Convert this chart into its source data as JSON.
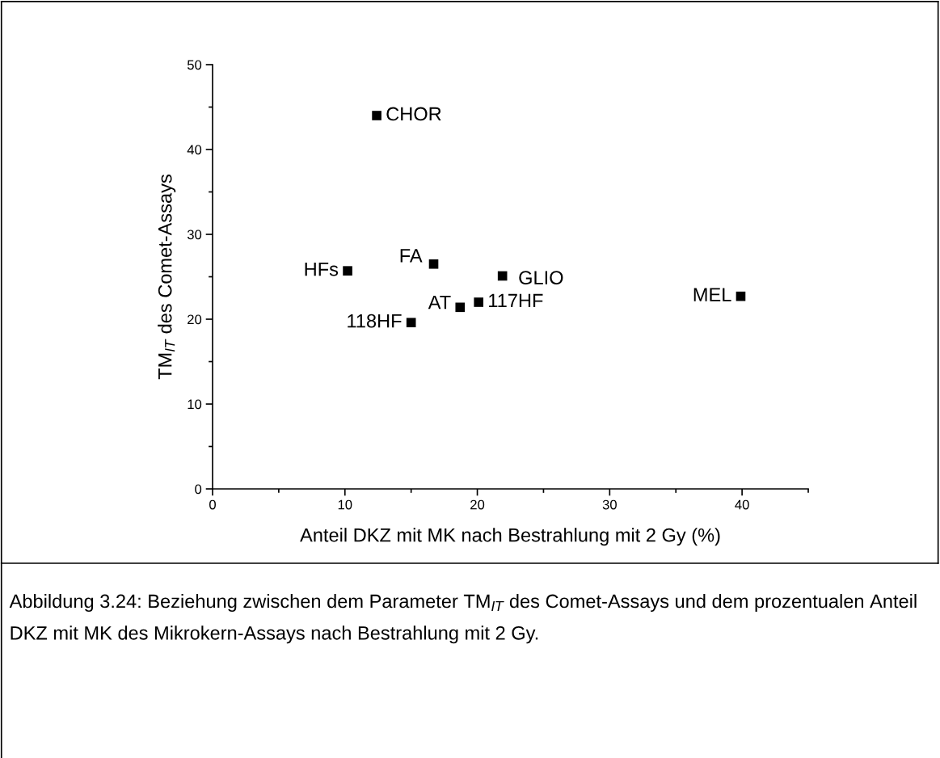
{
  "chart_data": {
    "type": "scatter",
    "xlabel": "Anteil DKZ mit MK nach Bestrahlung mit 2 Gy (%)",
    "ylabel": "TM$_{IT}$ des Comet-Assays",
    "x": [
      12.4,
      10.2,
      16.7,
      21.9,
      18.7,
      20.1,
      15.0,
      39.9
    ],
    "values": [
      44.0,
      25.7,
      26.5,
      25.1,
      21.4,
      22.0,
      19.6,
      22.7
    ],
    "color": "#000000",
    "marker": "square",
    "xlim": [
      0,
      45
    ],
    "xticks": [
      0,
      10,
      20,
      30,
      40
    ],
    "ylim": [
      0,
      50
    ],
    "yticks": [
      0,
      10,
      20,
      30,
      40,
      50
    ],
    "grid": false,
    "legend": false,
    "annotations": [
      {
        "text": "CHOR",
        "x": 12.4,
        "y": 44.0
      },
      {
        "text": "HFs",
        "x": 10.2,
        "y": 25.7
      },
      {
        "text": "FA",
        "x": 16.7,
        "y": 26.5
      },
      {
        "text": "GLIO",
        "x": 21.9,
        "y": 25.1
      },
      {
        "text": "AT",
        "x": 18.7,
        "y": 21.4
      },
      {
        "text": "117HF",
        "x": 20.1,
        "y": 22.0
      },
      {
        "text": "118HF",
        "x": 15.0,
        "y": 19.6
      },
      {
        "text": "MEL",
        "x": 39.9,
        "y": 22.7
      },
      "Abbildung 3.24: Beziehung zwischen dem Parameter TM$_{IT}$ des Comet-Assays und dem prozentualen Anteil DKZ mit MK des Mikrokern-Assays nach Bestrahlung mit 2 Gy."
    ]
  }
}
